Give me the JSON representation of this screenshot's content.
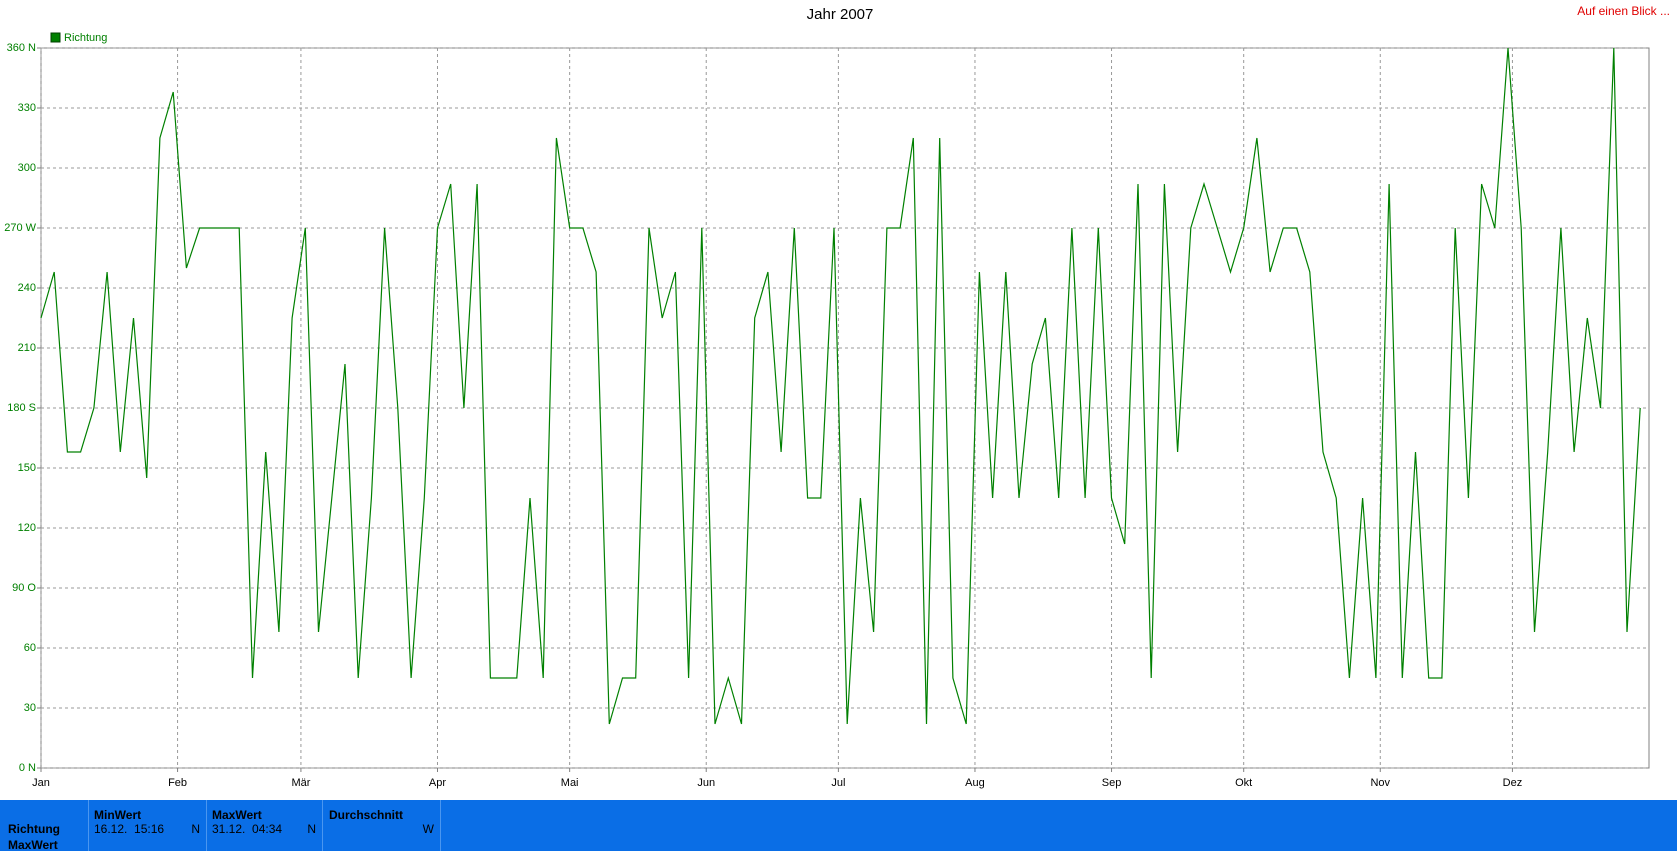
{
  "chart_data": {
    "type": "line",
    "title": "Jahr 2007",
    "series": [
      {
        "name": "Richtung",
        "color": "#008000",
        "x": [
          0,
          3,
          6,
          9,
          12,
          15,
          18,
          21,
          24,
          27,
          30,
          33,
          36,
          39,
          42,
          45,
          48,
          51,
          54,
          57,
          60,
          63,
          66,
          69,
          72,
          75,
          78,
          81,
          84,
          87,
          90,
          93,
          96,
          99,
          102,
          105,
          108,
          111,
          114,
          117,
          120,
          123,
          126,
          129,
          132,
          135,
          138,
          141,
          144,
          147,
          150,
          153,
          156,
          159,
          162,
          165,
          168,
          171,
          174,
          177,
          180,
          183,
          186,
          189,
          192,
          195,
          198,
          201,
          204,
          207,
          210,
          213,
          216,
          219,
          222,
          225,
          228,
          231,
          234,
          237,
          240,
          243,
          246,
          249,
          252,
          255,
          258,
          261,
          264,
          267,
          270,
          273,
          276,
          279,
          282,
          285,
          288,
          291,
          294,
          297,
          300,
          303,
          306,
          309,
          312,
          315,
          318,
          321,
          324,
          327,
          330,
          333,
          336,
          339,
          342,
          345,
          348,
          351,
          354,
          357,
          360,
          363
        ],
        "values": [
          225,
          248,
          158,
          158,
          180,
          248,
          158,
          225,
          145,
          315,
          338,
          250,
          270,
          270,
          270,
          270,
          45,
          158,
          68,
          225,
          270,
          68,
          135,
          202,
          45,
          135,
          270,
          180,
          45,
          135,
          270,
          292,
          180,
          292,
          45,
          45,
          45,
          135,
          45,
          315,
          270,
          270,
          248,
          22,
          45,
          45,
          270,
          225,
          248,
          45,
          270,
          22,
          45,
          22,
          225,
          248,
          158,
          270,
          135,
          135,
          270,
          22,
          135,
          68,
          270,
          270,
          315,
          22,
          315,
          45,
          22,
          248,
          135,
          248,
          135,
          202,
          225,
          135,
          270,
          135,
          270,
          135,
          112,
          292,
          45,
          292,
          158,
          270,
          292,
          270,
          248,
          270,
          315,
          248,
          270,
          270,
          248,
          158,
          135,
          45,
          135,
          45,
          292,
          45,
          158,
          45,
          45,
          270,
          135,
          292,
          270,
          360,
          270,
          68,
          158,
          270,
          158,
          225,
          180,
          360,
          68,
          180
        ]
      }
    ],
    "xlim": [
      0,
      365
    ],
    "xticks": [
      {
        "value": 0,
        "label": "Jan"
      },
      {
        "value": 31,
        "label": "Feb"
      },
      {
        "value": 59,
        "label": "Mär"
      },
      {
        "value": 90,
        "label": "Apr"
      },
      {
        "value": 120,
        "label": "Mai"
      },
      {
        "value": 151,
        "label": "Jun"
      },
      {
        "value": 181,
        "label": "Jul"
      },
      {
        "value": 212,
        "label": "Aug"
      },
      {
        "value": 243,
        "label": "Sep"
      },
      {
        "value": 273,
        "label": "Okt"
      },
      {
        "value": 304,
        "label": "Nov"
      },
      {
        "value": 334,
        "label": "Dez"
      }
    ],
    "ylim": [
      0,
      360
    ],
    "yticks": [
      {
        "value": 0,
        "label": "0 N"
      },
      30,
      60,
      {
        "value": 90,
        "label": "90 O"
      },
      120,
      150,
      {
        "value": 180,
        "label": "180 S"
      },
      210,
      240,
      {
        "value": 270,
        "label": "270 W"
      },
      300,
      330,
      {
        "value": 360,
        "label": "360 N"
      }
    ],
    "grid": true,
    "legend": "top-left"
  },
  "header": {
    "link": "Auf einen Blick ..."
  },
  "stats": {
    "row_label": "Richtung",
    "row_label2": "MaxWert",
    "min": {
      "title": "MinWert",
      "time": "16.12.  15:16",
      "dir": "N"
    },
    "max": {
      "title": "MaxWert",
      "time": "31.12.  04:34",
      "dir": "N"
    },
    "avg": {
      "title": "Durchschnitt",
      "dir": "W"
    }
  }
}
